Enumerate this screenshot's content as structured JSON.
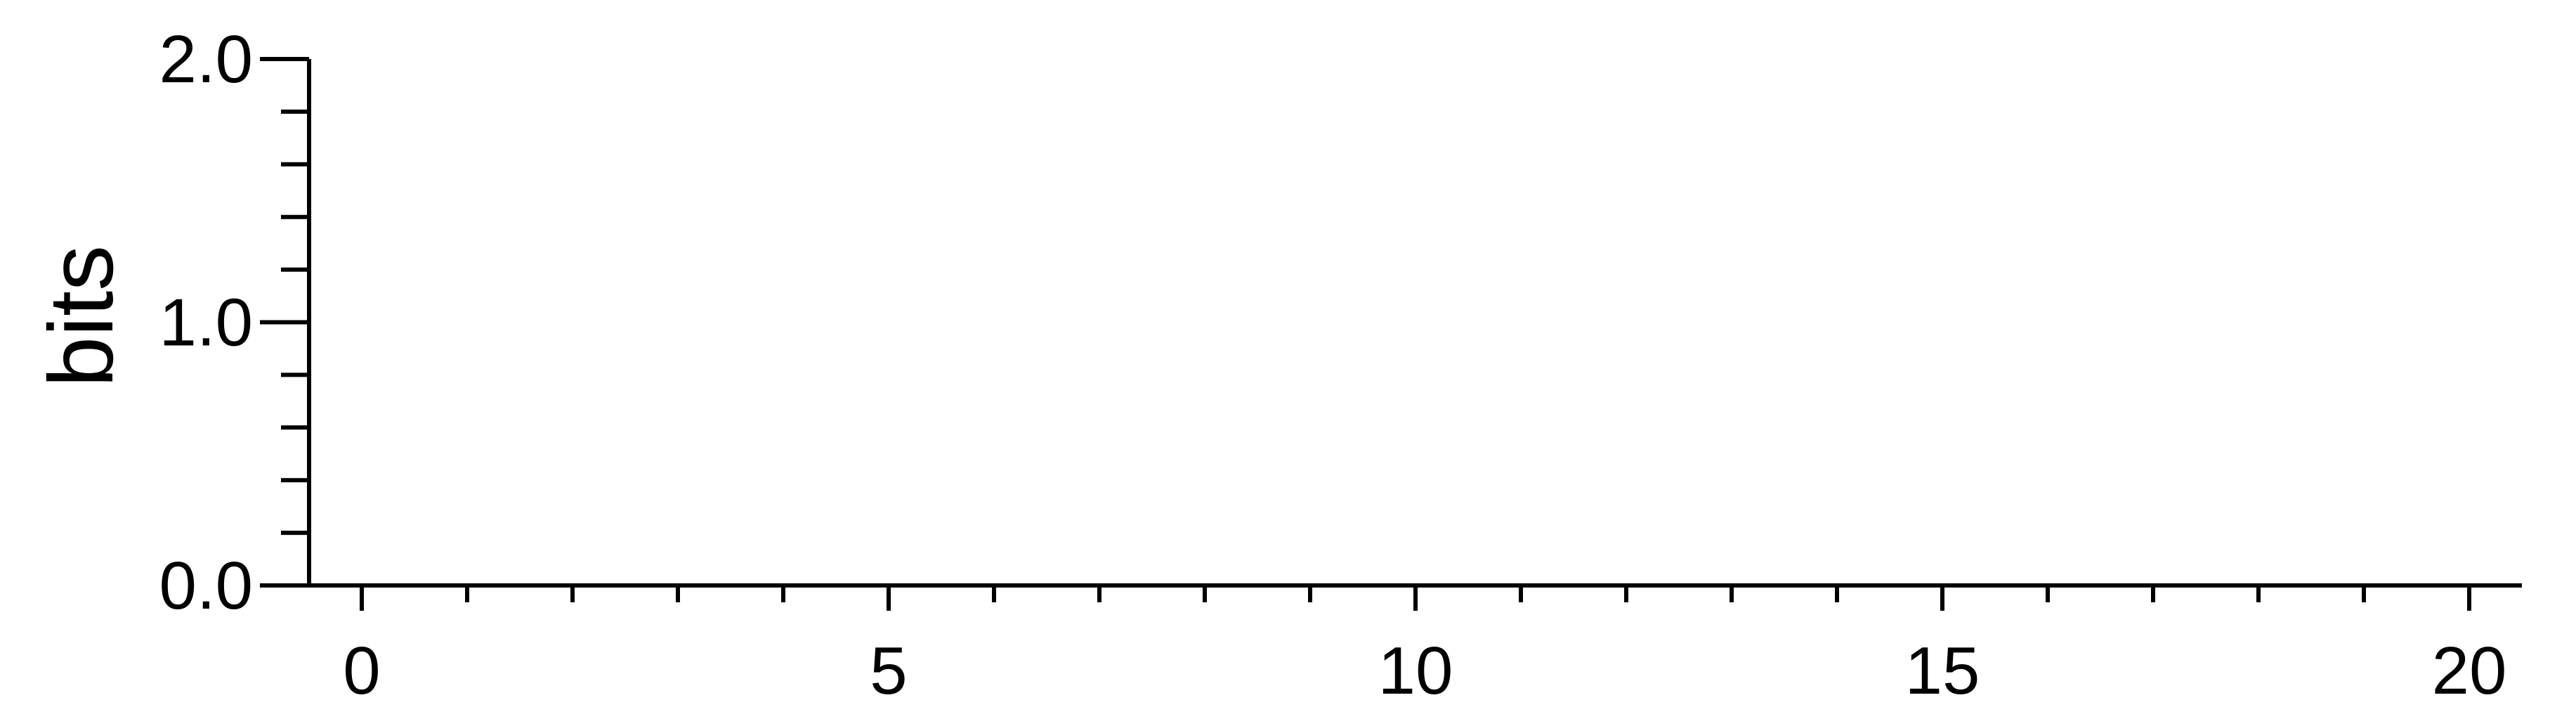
{
  "chart_data": {
    "type": "line",
    "title": "",
    "xlabel": "",
    "ylabel": "bits",
    "xlim": [
      -0.5,
      20.5
    ],
    "ylim": [
      0.0,
      2.0
    ],
    "x_ticks": [
      0,
      5,
      10,
      15,
      20
    ],
    "x_tick_labels": [
      "0",
      "5",
      "10",
      "15",
      "20"
    ],
    "x_minor_ticks": [
      1,
      2,
      3,
      4,
      6,
      7,
      8,
      9,
      11,
      12,
      13,
      14,
      16,
      17,
      18,
      19
    ],
    "y_ticks": [
      0.0,
      1.0,
      2.0
    ],
    "y_tick_labels": [
      "0.0",
      "1.0",
      "2.0"
    ],
    "y_minor_ticks": [
      0.2,
      0.4,
      0.6,
      0.8,
      1.2,
      1.4,
      1.6,
      1.8
    ],
    "series": [],
    "grid": false,
    "colors": {
      "axis": "#000000",
      "background": "#ffffff"
    }
  }
}
